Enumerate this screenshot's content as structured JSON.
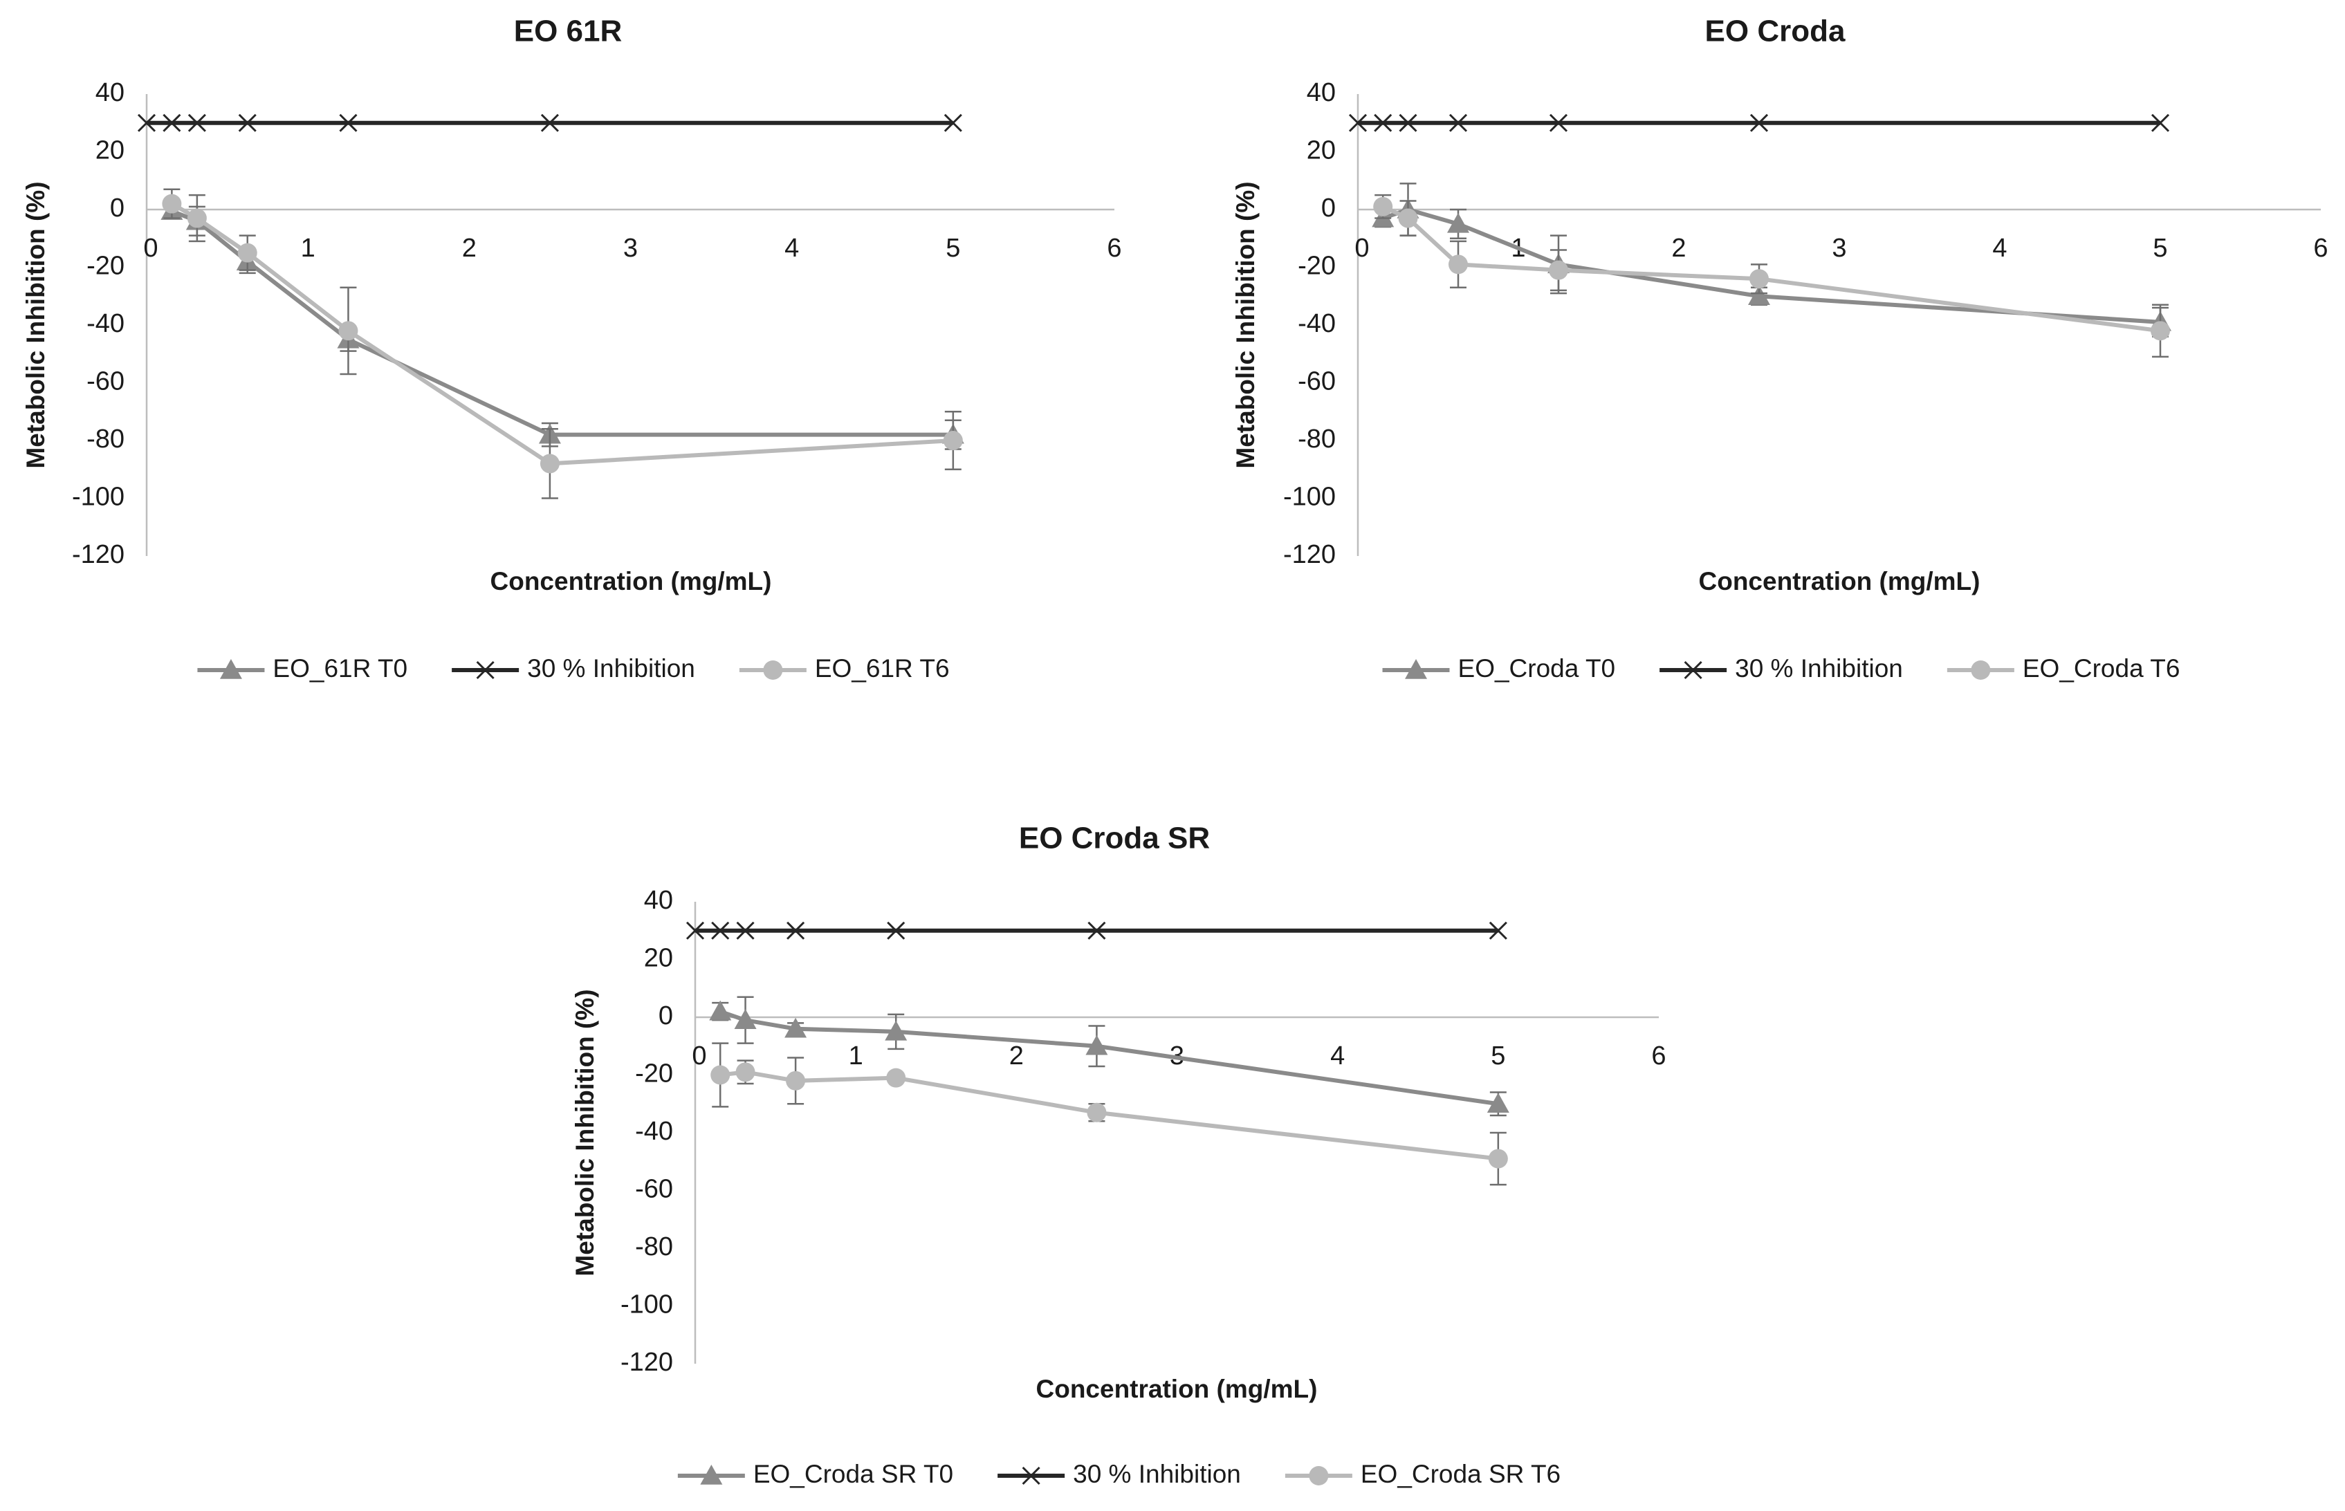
{
  "chart_data": [
    {
      "type": "line",
      "title": "EO 61R",
      "x_label": "Concentration (mg/mL)",
      "y_label": "Metabolic Inhibition (%)",
      "x": [
        0,
        0.156,
        0.3125,
        0.625,
        1.25,
        2.5,
        5
      ],
      "xlim": [
        0,
        6
      ],
      "xticks": [
        0,
        1,
        2,
        3,
        4,
        5,
        6
      ],
      "ylim": [
        -120,
        40
      ],
      "yticks": [
        40,
        20,
        0,
        -20,
        -40,
        -60,
        -80,
        -100,
        -120
      ],
      "series": [
        {
          "name": "EO_61R T0",
          "color": "#8a8a8a",
          "marker": "triangle",
          "values": [
            null,
            -0.5,
            -4,
            -18,
            -45,
            -78,
            -78
          ],
          "errors": [
            null,
            2,
            5,
            4,
            4,
            4,
            5
          ]
        },
        {
          "name": "30 % Inhibition",
          "color": "#262626",
          "marker": "x",
          "values": [
            30,
            30,
            30,
            30,
            30,
            30,
            30
          ]
        },
        {
          "name": "EO_61R T6",
          "color": "#b9b9b9",
          "marker": "circle",
          "values": [
            null,
            2,
            -3,
            -15,
            -42,
            -88,
            -80
          ],
          "errors": [
            null,
            5,
            8,
            6,
            15,
            12,
            10
          ]
        }
      ]
    },
    {
      "type": "line",
      "title": "EO Croda",
      "x_label": "Concentration (mg/mL)",
      "y_label": "Metabolic Inhibition (%)",
      "x": [
        0,
        0.156,
        0.3125,
        0.625,
        1.25,
        2.5,
        5
      ],
      "xlim": [
        0,
        6
      ],
      "xticks": [
        0,
        1,
        2,
        3,
        4,
        5,
        6
      ],
      "ylim": [
        -120,
        40
      ],
      "yticks": [
        40,
        20,
        0,
        -20,
        -40,
        -60,
        -80,
        -100,
        -120
      ],
      "series": [
        {
          "name": "EO_Croda T0",
          "color": "#8a8a8a",
          "marker": "triangle",
          "values": [
            null,
            -3,
            0,
            -5,
            -19,
            -30,
            -39
          ],
          "errors": [
            null,
            3,
            9,
            5,
            10,
            3,
            5
          ]
        },
        {
          "name": "30 % Inhibition",
          "color": "#262626",
          "marker": "x",
          "values": [
            30,
            30,
            30,
            30,
            30,
            30,
            30
          ]
        },
        {
          "name": "EO_Croda T6",
          "color": "#b9b9b9",
          "marker": "circle",
          "values": [
            null,
            1,
            -3,
            -19,
            -21,
            -24,
            -42
          ],
          "errors": [
            null,
            4,
            6,
            8,
            7,
            5,
            9
          ]
        }
      ]
    },
    {
      "type": "line",
      "title": "EO Croda SR",
      "x_label": "Concentration (mg/mL)",
      "y_label": "Metabolic Inhibition (%)",
      "x": [
        0,
        0.156,
        0.3125,
        0.625,
        1.25,
        2.5,
        5
      ],
      "xlim": [
        0,
        6
      ],
      "xticks": [
        0,
        1,
        2,
        3,
        4,
        5,
        6
      ],
      "ylim": [
        -120,
        40
      ],
      "yticks": [
        40,
        20,
        0,
        -20,
        -40,
        -60,
        -80,
        -100,
        -120
      ],
      "series": [
        {
          "name": "EO_Croda SR T0",
          "color": "#8a8a8a",
          "marker": "triangle",
          "values": [
            null,
            2,
            -1,
            -4,
            -5,
            -10,
            -30
          ],
          "errors": [
            null,
            3,
            8,
            2,
            6,
            7,
            4
          ]
        },
        {
          "name": "30 % Inhibition",
          "color": "#262626",
          "marker": "x",
          "values": [
            30,
            30,
            30,
            30,
            30,
            30,
            30
          ]
        },
        {
          "name": "EO_Croda SR T6",
          "color": "#b9b9b9",
          "marker": "circle",
          "values": [
            null,
            -20,
            -19,
            -22,
            -21,
            -33,
            -49
          ],
          "errors": [
            null,
            11,
            4,
            8,
            1,
            3,
            9
          ]
        }
      ]
    }
  ]
}
